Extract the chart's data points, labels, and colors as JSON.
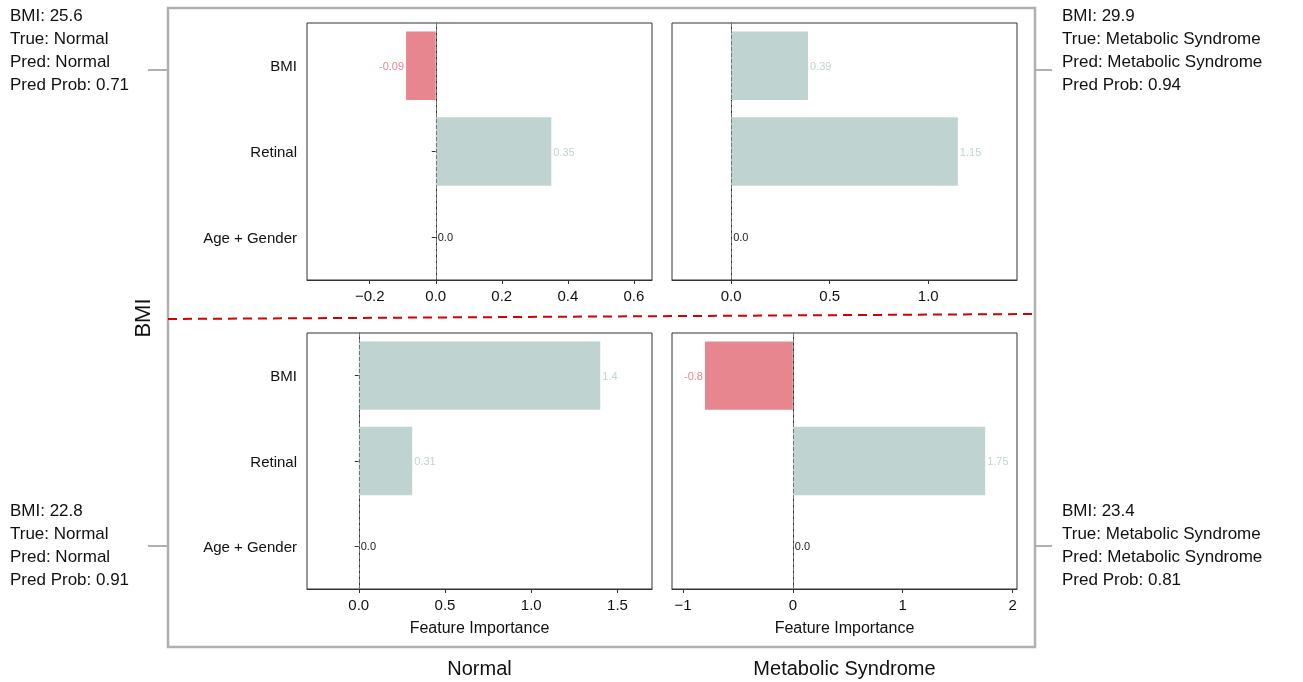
{
  "chart_data": [
    {
      "type": "bar",
      "orientation": "horizontal",
      "categories": [
        "BMI",
        "Retinal",
        "Age + Gender"
      ],
      "values": [
        -0.09,
        0.35,
        0
      ],
      "colors": [
        "#e8868f",
        "#bfd4d1",
        "#222222"
      ],
      "value_labels": [
        "-0.09",
        "0.35",
        "0.0"
      ],
      "xlim": [
        -0.39,
        0.655
      ],
      "xticks": [
        {
          "value": -0.2,
          "label": "−0.2"
        },
        {
          "value": 0,
          "label": "0.0"
        },
        0.2,
        0.4,
        0.6
      ],
      "grid": false,
      "ref_lines": [
        {
          "axis": "x",
          "value": 0,
          "color": "#777777",
          "line_style": "dashed"
        }
      ],
      "annotations": [
        "BMI: 25.6\nTrue: Normal\nPred: Normal\nPred Prob: 0.71",
        "BMI"
      ]
    },
    {
      "type": "bar",
      "orientation": "horizontal",
      "categories": [
        null,
        null,
        null
      ],
      "values": [
        0.39,
        1.15,
        0
      ],
      "colors": [
        "#bfd4d1",
        "#bfd4d1",
        "#222222"
      ],
      "value_labels": [
        "0.39",
        "1.15",
        "0.0"
      ],
      "xlim": [
        -0.3,
        1.45
      ],
      "xticks": [
        {
          "value": 0,
          "label": "0.0"
        },
        0.5,
        {
          "value": 1,
          "label": "1.0"
        }
      ],
      "grid": false,
      "tick_labels": "x",
      "ref_lines": [
        {
          "axis": "x",
          "value": 0,
          "color": "#777777",
          "line_style": "dashed"
        }
      ],
      "annotations": [
        "BMI: 29.9\nTrue: Metabolic Syndrome\nPred: Metabolic Syndrome\nPred Prob: 0.94"
      ]
    },
    {
      "type": "bar",
      "orientation": "horizontal",
      "categories": [
        "BMI",
        "Retinal",
        "Age + Gender"
      ],
      "values": [
        1.4,
        0.31,
        0
      ],
      "colors": [
        "#bfd4d1",
        "#bfd4d1",
        "#222222"
      ],
      "value_labels": [
        "1.4",
        "0.31",
        "0.0"
      ],
      "xlim": [
        -0.3,
        1.7
      ],
      "xticks": [
        {
          "value": 0,
          "label": "0.0"
        },
        0.5,
        {
          "value": 1,
          "label": "1.0"
        },
        1.5
      ],
      "xlabel": "Feature Importance",
      "grid": false,
      "ref_lines": [
        {
          "axis": "x",
          "value": 0,
          "color": "#777777",
          "line_style": "dashed"
        }
      ],
      "annotations": [
        "BMI: 22.8\nTrue: Normal\nPred: Normal\nPred Prob: 0.91",
        "Normal"
      ]
    },
    {
      "type": "bar",
      "orientation": "horizontal",
      "categories": [
        null,
        null,
        null
      ],
      "values": [
        -0.8,
        1.75,
        0
      ],
      "colors": [
        "#e8868f",
        "#bfd4d1",
        "#222222"
      ],
      "value_labels": [
        "-0.8",
        "1.75",
        "0.0"
      ],
      "xlim": [
        -1.1,
        2.04
      ],
      "xticks": [
        {
          "value": -1,
          "label": "−1"
        },
        0,
        1,
        2
      ],
      "xlabel": "Feature Importance",
      "grid": false,
      "tick_labels": "x",
      "ref_lines": [
        {
          "axis": "x",
          "value": 0,
          "color": "#777777",
          "line_style": "dashed"
        }
      ],
      "annotations": [
        "BMI: 23.4\nTrue: Metabolic Syndrome\nPred: Metabolic Syndrome\nPred Prob: 0.81",
        "Metabolic Syndrome"
      ]
    }
  ]
}
